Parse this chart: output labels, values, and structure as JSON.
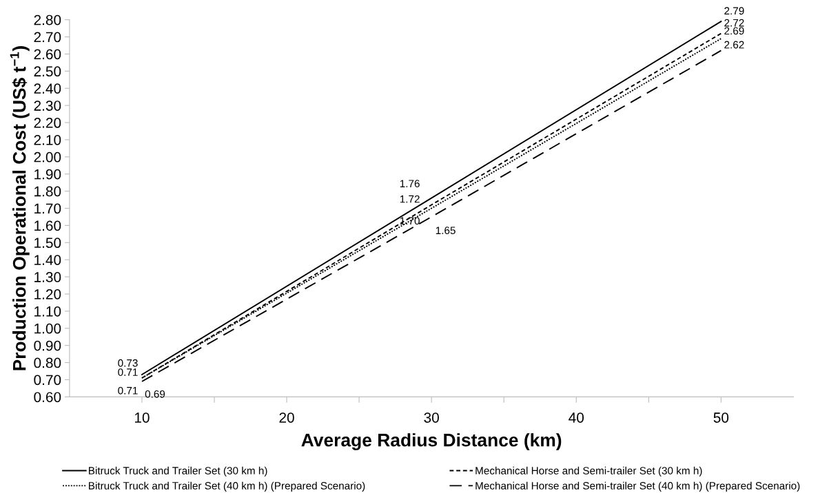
{
  "chart_data": {
    "type": "line",
    "xlabel": "Average Radius Distance (km)",
    "ylabel": "Production Operational Cost (US$ t$^{−1}$)",
    "x": [
      10,
      30,
      50
    ],
    "xlim": [
      5,
      55
    ],
    "xticks": [
      10,
      {
        "value": 15,
        "label": null
      },
      20,
      {
        "value": 25,
        "label": null
      },
      30,
      {
        "value": 35,
        "label": null
      },
      40,
      {
        "value": 45,
        "label": null
      },
      50
    ],
    "ylim": [
      0.6,
      2.8
    ],
    "yticks": [
      {
        "value": 0.6,
        "label": "0.60"
      },
      {
        "value": 0.7,
        "label": "0.70"
      },
      {
        "value": 0.8,
        "label": "0.80"
      },
      {
        "value": 0.9,
        "label": "0.90"
      },
      {
        "value": 1.0,
        "label": "1.00"
      },
      {
        "value": 1.1,
        "label": "1.10"
      },
      {
        "value": 1.2,
        "label": "1.20"
      },
      {
        "value": 1.3,
        "label": "1.30"
      },
      {
        "value": 1.4,
        "label": "1.40"
      },
      {
        "value": 1.5,
        "label": "1.50"
      },
      {
        "value": 1.6,
        "label": "1.60"
      },
      {
        "value": 1.7,
        "label": "1.70"
      },
      {
        "value": 1.8,
        "label": "1.80"
      },
      {
        "value": 1.9,
        "label": "1.90"
      },
      {
        "value": 2.0,
        "label": "2.00"
      },
      {
        "value": 2.1,
        "label": "2.10"
      },
      {
        "value": 2.2,
        "label": "2.20"
      },
      {
        "value": 2.3,
        "label": "2.30"
      },
      {
        "value": 2.4,
        "label": "2.40"
      },
      {
        "value": 2.5,
        "label": "2.50"
      },
      {
        "value": 2.6,
        "label": "2.60"
      },
      {
        "value": 2.7,
        "label": "2.70"
      },
      {
        "value": 2.8,
        "label": "2.80"
      }
    ],
    "grid": false,
    "legend": "bottom",
    "marker": "none",
    "series": [
      {
        "name": "Bitruck Truck and Trailer Set (30 km h)",
        "color": "#000000",
        "line_style": "solid",
        "values": [
          0.73,
          1.76,
          2.79
        ],
        "value_labels": [
          "0.73",
          "1.76",
          "2.79"
        ]
      },
      {
        "name": "Mechanical Horse and Semi-trailer Set (30 km h)",
        "color": "#000000",
        "line_style": "dashed",
        "values": [
          0.71,
          1.72,
          2.72
        ],
        "value_labels": [
          "0.71",
          "1.72",
          "2.72"
        ]
      },
      {
        "name": "Bitruck Truck and Trailer Set (40 km h) (Prepared Scenario)",
        "color": "#000000",
        "line_style": "dotted",
        "values": [
          0.71,
          1.7,
          2.69
        ],
        "value_labels": [
          "0.71",
          "1.70",
          "2.69"
        ]
      },
      {
        "name": "Mechanical Horse and Semi-trailer Set (40 km h) (Prepared Scenario)",
        "color": "#000000",
        "line_style": "long dashed",
        "values": [
          0.69,
          1.65,
          2.62
        ],
        "value_labels": [
          "0.69",
          "1.65",
          "2.62"
        ]
      }
    ]
  }
}
